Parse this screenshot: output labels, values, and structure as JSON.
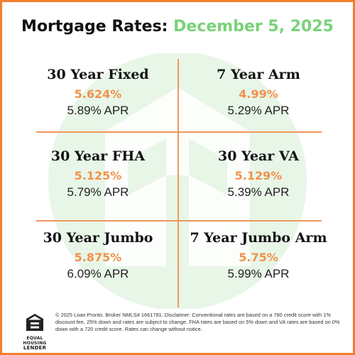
{
  "header": {
    "title": "Mortgage Rates:",
    "date": "December 5, 2025"
  },
  "colors": {
    "border": "#f07f2c",
    "rate": "#f2914a",
    "date": "#79d279",
    "watermark": "#e8f6e8"
  },
  "rates": [
    {
      "name": "30 Year Fixed",
      "rate": "5.624%",
      "apr": "5.89% APR"
    },
    {
      "name": "7 Year Arm",
      "rate": "4.99%",
      "apr": "5.29% APR"
    },
    {
      "name": "30 Year FHA",
      "rate": "5.125%",
      "apr": "5.79% APR"
    },
    {
      "name": "30 Year VA",
      "rate": "5.129%",
      "apr": "5.39% APR"
    },
    {
      "name": "30 Year Jumbo",
      "rate": "5.875%",
      "apr": "6.09% APR"
    },
    {
      "name": "7 Year Jumbo Arm",
      "rate": "5.75%",
      "apr": "5.99% APR"
    }
  ],
  "footer": {
    "logo_icon": "equal-housing-house-icon",
    "logo_line1": "EQUAL HOUSING",
    "logo_line2": "LENDER",
    "disclaimer": "© 2025 Loan Pronto. Broker NMLS# 1661781. Disclaimer: Conventional rates are based on a 780 credit score with 1% discount fee, 25% down and rates are subject to change. FHA rates are based on 5% down and VA rates are based on 0% down with a 720 credit score. Rates can change without notice."
  },
  "watermark_icon": "loan-pronto-logo-icon"
}
